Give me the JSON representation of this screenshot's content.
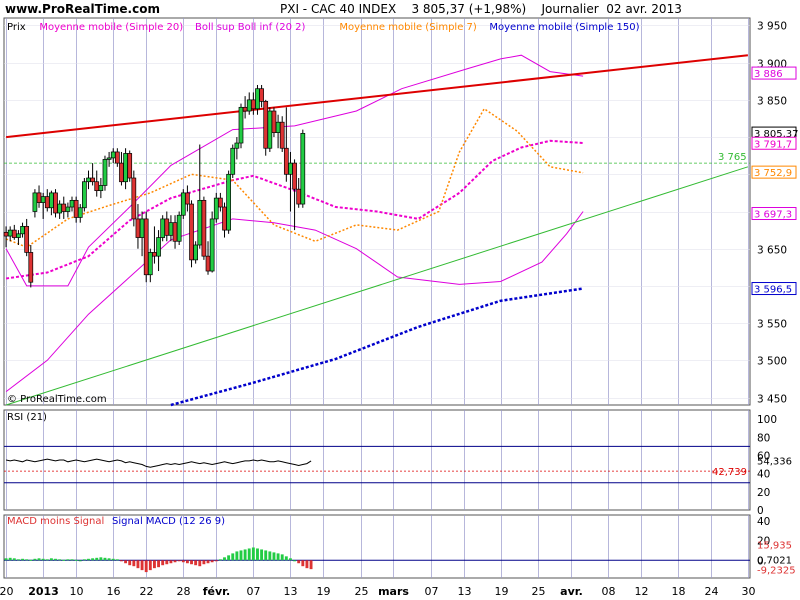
{
  "header": {
    "site": "www.ProRealTime.com",
    "title": "PXI - CAC 40 INDEX",
    "quote": "3 805,37 (+1,98%)",
    "period": "Journalier",
    "date": "02 avr. 2013"
  },
  "colors": {
    "up": "#22cc44",
    "down": "#dd3333",
    "bollinger": "#dd00dd",
    "ma7": "#ff8800",
    "ma20": "#ee00cc",
    "ma150": "#0000cc",
    "red_trend": "#dd0000",
    "green_trend": "#33bb33",
    "grid": "#9999cc",
    "panel_bg": "#eaeaf8"
  },
  "chart_data": [
    {
      "type": "candlestick",
      "panel": "price",
      "legend": [
        "Prix",
        "Moyenne mobile (Simple 20)",
        "Boll sup Boll inf (20 2)",
        "Moyenne mobile (Simple 7)",
        "Moyenne mobile (Simple 150)"
      ],
      "ylim": [
        3440,
        3960
      ],
      "y_ticks": [
        "3 450",
        "3 500",
        "3 550",
        "3 600",
        "3 650",
        "3 700",
        "3 750",
        "3 800",
        "3 850",
        "3 900",
        "3 950"
      ],
      "y_tick_values": [
        3450,
        3500,
        3550,
        3600,
        3650,
        3700,
        3750,
        3800,
        3850,
        3900,
        3950
      ],
      "x_labels": [
        "20",
        "2013",
        "10",
        "16",
        "22",
        "28",
        "févr.",
        "07",
        "13",
        "19",
        "25",
        "mars",
        "07",
        "13",
        "19",
        "25",
        "avr.",
        "08",
        "12",
        "18",
        "24",
        "30"
      ],
      "value_tags": [
        {
          "label": "3 886",
          "value": 3886,
          "color": "#dd00dd"
        },
        {
          "label": "3 805,37",
          "value": 3805.37,
          "color": "#000000"
        },
        {
          "label": "3 791,7",
          "value": 3791.7,
          "color": "#ee00cc"
        },
        {
          "label": "3 752,9",
          "value": 3752.9,
          "color": "#ff8800"
        },
        {
          "label": "3 697,3",
          "value": 3697.3,
          "color": "#dd00dd"
        },
        {
          "label": "3 596,5",
          "value": 3596.5,
          "color": "#0000cc"
        }
      ],
      "level_line": {
        "label": "3 765",
        "value": 3765
      },
      "candles": [
        {
          "o": 3672,
          "h": 3680,
          "l": 3652,
          "c": 3667
        },
        {
          "o": 3667,
          "h": 3680,
          "l": 3660,
          "c": 3675
        },
        {
          "o": 3675,
          "h": 3682,
          "l": 3662,
          "c": 3665
        },
        {
          "o": 3665,
          "h": 3675,
          "l": 3655,
          "c": 3670
        },
        {
          "o": 3670,
          "h": 3685,
          "l": 3665,
          "c": 3680
        },
        {
          "o": 3680,
          "h": 3690,
          "l": 3640,
          "c": 3645
        },
        {
          "o": 3645,
          "h": 3655,
          "l": 3598,
          "c": 3605
        },
        {
          "o": 3700,
          "h": 3730,
          "l": 3692,
          "c": 3725
        },
        {
          "o": 3725,
          "h": 3735,
          "l": 3705,
          "c": 3712
        },
        {
          "o": 3712,
          "h": 3725,
          "l": 3690,
          "c": 3720
        },
        {
          "o": 3720,
          "h": 3730,
          "l": 3700,
          "c": 3705
        },
        {
          "o": 3705,
          "h": 3728,
          "l": 3695,
          "c": 3725
        },
        {
          "o": 3725,
          "h": 3730,
          "l": 3692,
          "c": 3698
        },
        {
          "o": 3698,
          "h": 3715,
          "l": 3690,
          "c": 3710
        },
        {
          "o": 3710,
          "h": 3720,
          "l": 3690,
          "c": 3700
        },
        {
          "o": 3700,
          "h": 3712,
          "l": 3692,
          "c": 3706
        },
        {
          "o": 3706,
          "h": 3720,
          "l": 3700,
          "c": 3715
        },
        {
          "o": 3715,
          "h": 3720,
          "l": 3685,
          "c": 3692
        },
        {
          "o": 3692,
          "h": 3710,
          "l": 3685,
          "c": 3705
        },
        {
          "o": 3705,
          "h": 3745,
          "l": 3700,
          "c": 3740
        },
        {
          "o": 3740,
          "h": 3755,
          "l": 3730,
          "c": 3745
        },
        {
          "o": 3745,
          "h": 3765,
          "l": 3735,
          "c": 3740
        },
        {
          "o": 3740,
          "h": 3755,
          "l": 3720,
          "c": 3728
        },
        {
          "o": 3728,
          "h": 3745,
          "l": 3718,
          "c": 3735
        },
        {
          "o": 3735,
          "h": 3775,
          "l": 3728,
          "c": 3770
        },
        {
          "o": 3770,
          "h": 3780,
          "l": 3760,
          "c": 3772
        },
        {
          "o": 3772,
          "h": 3785,
          "l": 3765,
          "c": 3780
        },
        {
          "o": 3780,
          "h": 3785,
          "l": 3760,
          "c": 3765
        },
        {
          "o": 3765,
          "h": 3780,
          "l": 3735,
          "c": 3740
        },
        {
          "o": 3740,
          "h": 3785,
          "l": 3730,
          "c": 3778
        },
        {
          "o": 3778,
          "h": 3782,
          "l": 3740,
          "c": 3745
        },
        {
          "o": 3745,
          "h": 3755,
          "l": 3680,
          "c": 3690
        },
        {
          "o": 3690,
          "h": 3710,
          "l": 3650,
          "c": 3665
        },
        {
          "o": 3665,
          "h": 3700,
          "l": 3640,
          "c": 3690
        },
        {
          "o": 3690,
          "h": 3700,
          "l": 3605,
          "c": 3615
        },
        {
          "o": 3615,
          "h": 3650,
          "l": 3605,
          "c": 3645
        },
        {
          "o": 3645,
          "h": 3680,
          "l": 3630,
          "c": 3640
        },
        {
          "o": 3640,
          "h": 3675,
          "l": 3620,
          "c": 3665
        },
        {
          "o": 3665,
          "h": 3695,
          "l": 3660,
          "c": 3690
        },
        {
          "o": 3690,
          "h": 3700,
          "l": 3660,
          "c": 3668
        },
        {
          "o": 3668,
          "h": 3695,
          "l": 3660,
          "c": 3685
        },
        {
          "o": 3685,
          "h": 3695,
          "l": 3650,
          "c": 3660
        },
        {
          "o": 3660,
          "h": 3700,
          "l": 3655,
          "c": 3695
        },
        {
          "o": 3695,
          "h": 3730,
          "l": 3690,
          "c": 3725
        },
        {
          "o": 3725,
          "h": 3735,
          "l": 3700,
          "c": 3710
        },
        {
          "o": 3710,
          "h": 3715,
          "l": 3625,
          "c": 3635
        },
        {
          "o": 3635,
          "h": 3660,
          "l": 3630,
          "c": 3655
        },
        {
          "o": 3655,
          "h": 3790,
          "l": 3650,
          "c": 3715
        },
        {
          "o": 3715,
          "h": 3720,
          "l": 3635,
          "c": 3640
        },
        {
          "o": 3640,
          "h": 3660,
          "l": 3615,
          "c": 3620
        },
        {
          "o": 3620,
          "h": 3700,
          "l": 3618,
          "c": 3690
        },
        {
          "o": 3690,
          "h": 3725,
          "l": 3685,
          "c": 3718
        },
        {
          "o": 3718,
          "h": 3725,
          "l": 3700,
          "c": 3706
        },
        {
          "o": 3706,
          "h": 3712,
          "l": 3665,
          "c": 3675
        },
        {
          "o": 3675,
          "h": 3755,
          "l": 3670,
          "c": 3750
        },
        {
          "o": 3750,
          "h": 3790,
          "l": 3745,
          "c": 3785
        },
        {
          "o": 3785,
          "h": 3800,
          "l": 3770,
          "c": 3792
        },
        {
          "o": 3792,
          "h": 3845,
          "l": 3785,
          "c": 3840
        },
        {
          "o": 3840,
          "h": 3855,
          "l": 3825,
          "c": 3835
        },
        {
          "o": 3835,
          "h": 3860,
          "l": 3830,
          "c": 3850
        },
        {
          "o": 3850,
          "h": 3860,
          "l": 3830,
          "c": 3838
        },
        {
          "o": 3838,
          "h": 3870,
          "l": 3830,
          "c": 3865
        },
        {
          "o": 3865,
          "h": 3870,
          "l": 3840,
          "c": 3848
        },
        {
          "o": 3848,
          "h": 3850,
          "l": 3775,
          "c": 3785
        },
        {
          "o": 3785,
          "h": 3840,
          "l": 3780,
          "c": 3835
        },
        {
          "o": 3835,
          "h": 3840,
          "l": 3800,
          "c": 3806
        },
        {
          "o": 3806,
          "h": 3830,
          "l": 3785,
          "c": 3820
        },
        {
          "o": 3820,
          "h": 3828,
          "l": 3780,
          "c": 3785
        },
        {
          "o": 3785,
          "h": 3840,
          "l": 3740,
          "c": 3750
        },
        {
          "o": 3750,
          "h": 3780,
          "l": 3700,
          "c": 3765
        },
        {
          "o": 3765,
          "h": 3770,
          "l": 3675,
          "c": 3730
        },
        {
          "o": 3730,
          "h": 3745,
          "l": 3705,
          "c": 3710
        },
        {
          "o": 3710,
          "h": 3810,
          "l": 3705,
          "c": 3805
        }
      ],
      "bollinger_upper": [
        [
          0,
          3650
        ],
        [
          5,
          3600
        ],
        [
          15,
          3600
        ],
        [
          20,
          3652
        ],
        [
          30,
          3706
        ],
        [
          40,
          3762
        ],
        [
          55,
          3810
        ],
        [
          70,
          3815
        ],
        [
          85,
          3835
        ],
        [
          96,
          3865
        ],
        [
          112,
          3892
        ],
        [
          120,
          3905
        ],
        [
          125,
          3910
        ],
        [
          132,
          3888
        ],
        [
          140,
          3882
        ]
      ],
      "bollinger_lower": [
        [
          0,
          3458
        ],
        [
          10,
          3500
        ],
        [
          20,
          3562
        ],
        [
          30,
          3612
        ],
        [
          40,
          3662
        ],
        [
          55,
          3690
        ],
        [
          65,
          3685
        ],
        [
          75,
          3675
        ],
        [
          85,
          3650
        ],
        [
          95,
          3612
        ],
        [
          110,
          3602
        ],
        [
          120,
          3606
        ],
        [
          130,
          3632
        ],
        [
          136,
          3670
        ],
        [
          140,
          3700
        ]
      ],
      "bollinger_mid": [
        [
          0,
          3660
        ],
        [
          30,
          3702
        ],
        [
          60,
          3706
        ],
        [
          90,
          3690
        ],
        [
          110,
          3730
        ],
        [
          125,
          3800
        ],
        [
          140,
          3792
        ]
      ],
      "ma20": [
        [
          0,
          3610
        ],
        [
          10,
          3618
        ],
        [
          20,
          3640
        ],
        [
          30,
          3688
        ],
        [
          40,
          3718
        ],
        [
          55,
          3742
        ],
        [
          60,
          3748
        ],
        [
          70,
          3728
        ],
        [
          80,
          3706
        ],
        [
          90,
          3700
        ],
        [
          100,
          3690
        ],
        [
          110,
          3725
        ],
        [
          118,
          3768
        ],
        [
          125,
          3786
        ],
        [
          132,
          3795
        ],
        [
          140,
          3792
        ]
      ],
      "ma7": [
        [
          0,
          3663
        ],
        [
          5,
          3652
        ],
        [
          15,
          3690
        ],
        [
          25,
          3708
        ],
        [
          35,
          3725
        ],
        [
          45,
          3750
        ],
        [
          55,
          3742
        ],
        [
          65,
          3682
        ],
        [
          75,
          3660
        ],
        [
          85,
          3682
        ],
        [
          95,
          3675
        ],
        [
          105,
          3700
        ],
        [
          110,
          3780
        ],
        [
          116,
          3838
        ],
        [
          124,
          3808
        ],
        [
          132,
          3760
        ],
        [
          140,
          3752
        ]
      ],
      "ma150": [
        [
          40,
          3440
        ],
        [
          60,
          3470
        ],
        [
          80,
          3502
        ],
        [
          100,
          3545
        ],
        [
          120,
          3580
        ],
        [
          140,
          3596.5
        ]
      ],
      "trend_red": [
        [
          0,
          3800
        ],
        [
          180,
          3910
        ]
      ],
      "trend_green": [
        [
          0,
          3440
        ],
        [
          180,
          3760
        ]
      ]
    },
    {
      "type": "line",
      "panel": "rsi",
      "legend": [
        "RSI (21)"
      ],
      "ylim": [
        0,
        110
      ],
      "y_ticks": [
        "0",
        "20",
        "40",
        "60",
        "80",
        "100"
      ],
      "y_tick_values": [
        0,
        20,
        40,
        60,
        80,
        100
      ],
      "level_tag": {
        "label": "42,739",
        "value": 42.739
      },
      "last_tag": {
        "label": "54,336",
        "value": 54.336
      },
      "values": [
        55,
        54,
        55,
        54,
        53,
        55,
        54,
        53,
        54,
        55,
        56,
        55,
        54,
        55,
        55,
        53,
        54,
        55,
        54,
        53,
        54,
        55,
        56,
        55,
        54,
        53,
        54,
        55,
        54,
        52,
        53,
        52,
        51,
        50,
        48,
        47,
        48,
        49,
        50,
        51,
        50,
        51,
        50,
        51,
        52,
        53,
        52,
        51,
        52,
        51,
        50,
        51,
        52,
        53,
        52,
        51,
        52,
        53,
        54,
        54,
        55,
        54,
        55,
        54,
        53,
        53,
        54,
        53,
        52,
        51,
        50,
        49,
        50,
        51,
        54
      ]
    },
    {
      "type": "bar",
      "panel": "macd",
      "legend": [
        "MACD moins Signal",
        "Signal MACD (12 26 9)"
      ],
      "ylim": [
        -18,
        46
      ],
      "y_ticks": [
        "0",
        "20",
        "40"
      ],
      "y_tick_values": [
        0,
        20,
        40
      ],
      "tags": [
        {
          "label": "15,935",
          "value": 15.935,
          "color": "#dd3333"
        },
        {
          "label": "0,7021",
          "value": 0.7021,
          "color": "#000000"
        },
        {
          "label": "-9,2325",
          "value": -9.2325,
          "color": "#dd3333"
        }
      ],
      "histogram": [
        2,
        2.5,
        2,
        1,
        1.5,
        1,
        0.5,
        1.5,
        2,
        1.5,
        1,
        2,
        1.5,
        1,
        0.5,
        1,
        1,
        0.5,
        0,
        1,
        1.5,
        2,
        2.5,
        3,
        2.5,
        2,
        1.5,
        1,
        -1,
        -3,
        -5,
        -6,
        -8,
        -10,
        -12,
        -10,
        -8,
        -7,
        -5,
        -4,
        -3,
        -2,
        -1,
        -2,
        -3,
        -4,
        -5,
        -6,
        -4,
        -3,
        -2,
        -1,
        1,
        3,
        5,
        7,
        9,
        10,
        11,
        12,
        13,
        12,
        11,
        10,
        9,
        8,
        7,
        6,
        4,
        2,
        0,
        -3,
        -6,
        -8,
        -9
      ]
    }
  ]
}
